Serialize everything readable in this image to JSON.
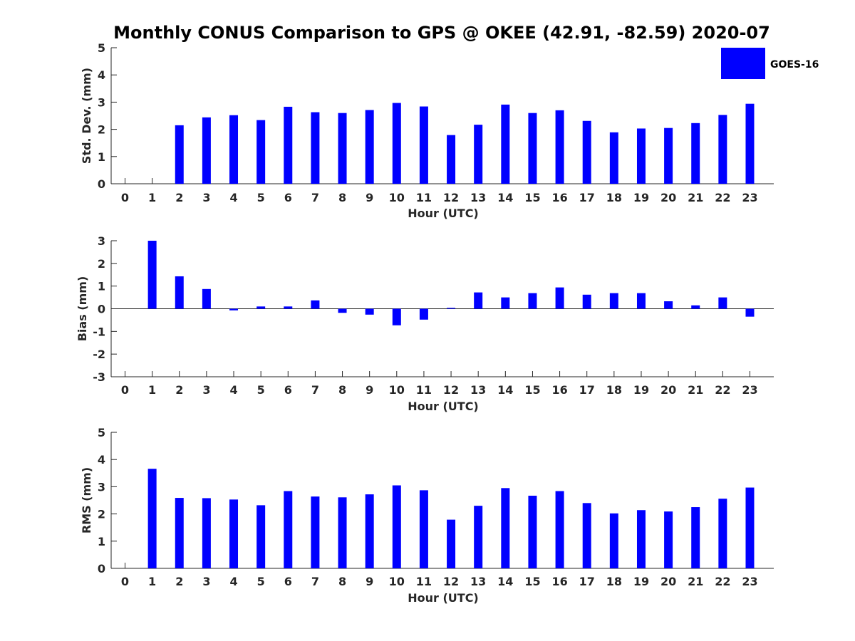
{
  "title": "Monthly CONUS Comparison to GPS @ OKEE (42.91, -82.59) 2020-07",
  "legend": {
    "label": "GOES-16",
    "color": "#0000FF"
  },
  "chart_data": [
    {
      "type": "bar",
      "xlabel": "Hour (UTC)",
      "ylabel": "Std. Dev. (mm)",
      "ylim": [
        0,
        5
      ],
      "yticks": [
        0,
        1,
        2,
        3,
        4,
        5
      ],
      "categories": [
        "0",
        "1",
        "2",
        "3",
        "4",
        "5",
        "6",
        "7",
        "8",
        "9",
        "10",
        "11",
        "12",
        "13",
        "14",
        "15",
        "16",
        "17",
        "18",
        "19",
        "20",
        "21",
        "22",
        "23"
      ],
      "series": [
        {
          "name": "GOES-16",
          "values": [
            null,
            null,
            2.15,
            2.44,
            2.52,
            2.34,
            2.83,
            2.63,
            2.6,
            2.71,
            2.97,
            2.84,
            1.79,
            2.17,
            2.91,
            2.6,
            2.7,
            2.31,
            1.89,
            2.03,
            2.05,
            2.23,
            2.53,
            2.94
          ]
        }
      ]
    },
    {
      "type": "bar",
      "xlabel": "Hour (UTC)",
      "ylabel": "Bias (mm)",
      "ylim": [
        -3,
        3
      ],
      "yticks": [
        -3,
        -2,
        -1,
        0,
        1,
        2,
        3
      ],
      "categories": [
        "0",
        "1",
        "2",
        "3",
        "4",
        "5",
        "6",
        "7",
        "8",
        "9",
        "10",
        "11",
        "12",
        "13",
        "14",
        "15",
        "16",
        "17",
        "18",
        "19",
        "20",
        "21",
        "22",
        "23"
      ],
      "series": [
        {
          "name": "GOES-16",
          "values": [
            null,
            3.0,
            1.43,
            0.87,
            -0.07,
            0.1,
            0.1,
            0.37,
            -0.18,
            -0.26,
            -0.73,
            -0.48,
            0.04,
            0.72,
            0.5,
            0.69,
            0.94,
            0.62,
            0.69,
            0.69,
            0.33,
            0.15,
            0.5,
            -0.35
          ]
        }
      ]
    },
    {
      "type": "bar",
      "xlabel": "Hour (UTC)",
      "ylabel": "RMS (mm)",
      "ylim": [
        0,
        5
      ],
      "yticks": [
        0,
        1,
        2,
        3,
        4,
        5
      ],
      "categories": [
        "0",
        "1",
        "2",
        "3",
        "4",
        "5",
        "6",
        "7",
        "8",
        "9",
        "10",
        "11",
        "12",
        "13",
        "14",
        "15",
        "16",
        "17",
        "18",
        "19",
        "20",
        "21",
        "22",
        "23"
      ],
      "series": [
        {
          "name": "GOES-16",
          "values": [
            null,
            3.66,
            2.59,
            2.58,
            2.53,
            2.32,
            2.84,
            2.64,
            2.61,
            2.72,
            3.05,
            2.87,
            1.79,
            2.3,
            2.95,
            2.67,
            2.84,
            2.4,
            2.02,
            2.14,
            2.09,
            2.25,
            2.56,
            2.97
          ]
        }
      ]
    }
  ]
}
